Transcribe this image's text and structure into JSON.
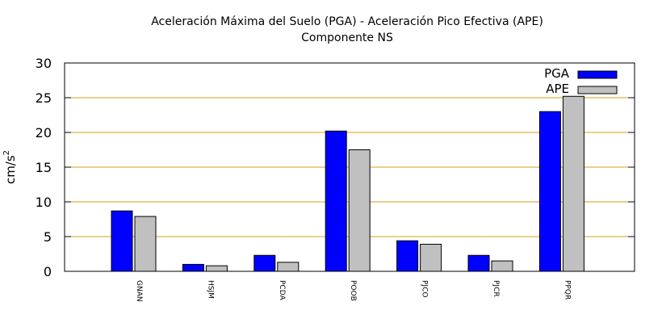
{
  "chart_data": {
    "type": "bar",
    "title": "Aceleración Máxima del Suelo (PGA) -  Aceleración Pico Efectiva (APE)",
    "subtitle": "Componente NS",
    "xlabel": "",
    "ylabel": "cm/s",
    "ylabel_superscript": "2",
    "ylim": [
      0,
      30
    ],
    "yticks": [
      0,
      5,
      10,
      15,
      20,
      25,
      30
    ],
    "grid": "horizontal",
    "legend_position": "top-right",
    "categories": [
      "GNAN",
      "HSJM",
      "PCDA",
      "POOB",
      "PJCO",
      "PJCR",
      "PPQR"
    ],
    "series": [
      {
        "name": "PGA",
        "color": "#0000ff",
        "values": [
          8.7,
          1.0,
          2.3,
          20.2,
          4.4,
          2.3,
          23.0
        ]
      },
      {
        "name": "APE",
        "color": "#c0c0c0",
        "values": [
          7.9,
          0.8,
          1.3,
          17.5,
          3.9,
          1.5,
          25.2
        ]
      }
    ],
    "grid_color": "#d4a017"
  }
}
